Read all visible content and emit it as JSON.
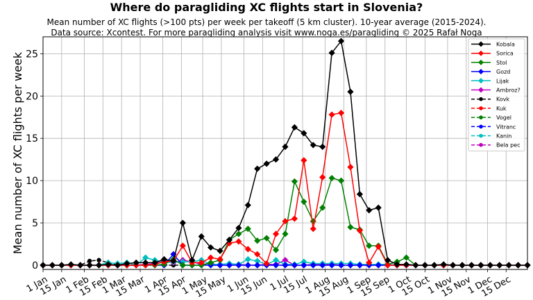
{
  "title": "Where do paragliding XC flights start in Slovenia?",
  "subtitle1": "Mean number of XC flights (>100 pts) per week per takeoff (5 km cluster). 10-year average (2015-2024).",
  "subtitle2": "Data source: Xcontest. For more paragliding analysis visit www.noga.es/paragliding © 2025 Rafał Noga",
  "chart_data": {
    "type": "line",
    "ylabel": "Mean number of XC flights per week",
    "xlim": [
      0,
      52
    ],
    "ylim": [
      -0.5,
      27
    ],
    "yticks": [
      0,
      5,
      10,
      15,
      20,
      25
    ],
    "xticks": [
      {
        "x": 0,
        "label": "1 Jan"
      },
      {
        "x": 2,
        "label": "15 Jan"
      },
      {
        "x": 4.43,
        "label": "1 Feb"
      },
      {
        "x": 6.43,
        "label": "15 Feb"
      },
      {
        "x": 8.43,
        "label": "1 Mar"
      },
      {
        "x": 10.43,
        "label": "15 Mar"
      },
      {
        "x": 12.86,
        "label": "1 Apr"
      },
      {
        "x": 14.86,
        "label": "15 Apr"
      },
      {
        "x": 17.14,
        "label": "1 May"
      },
      {
        "x": 19.14,
        "label": "15 May"
      },
      {
        "x": 21.57,
        "label": "1 Jun"
      },
      {
        "x": 23.57,
        "label": "15 Jun"
      },
      {
        "x": 25.86,
        "label": "1 Jul"
      },
      {
        "x": 27.86,
        "label": "15 Jul"
      },
      {
        "x": 30.29,
        "label": "1 Aug"
      },
      {
        "x": 32.29,
        "label": "15 Aug"
      },
      {
        "x": 34.71,
        "label": "1 Sep"
      },
      {
        "x": 36.71,
        "label": "15 Sep"
      },
      {
        "x": 39,
        "label": "1 Oct"
      },
      {
        "x": 41,
        "label": "15 Oct"
      },
      {
        "x": 43.43,
        "label": "1 Nov"
      },
      {
        "x": 45.43,
        "label": "15 Nov"
      },
      {
        "x": 47.71,
        "label": "1 Dec"
      },
      {
        "x": 49.71,
        "label": "15 Dec"
      }
    ],
    "legend_position": "upper right",
    "series": [
      {
        "name": "Kobala",
        "color": "#000000",
        "style": "solid",
        "marker": "diamond",
        "values": [
          0,
          0,
          0,
          0.1,
          0,
          0,
          0,
          0.1,
          0,
          0.2,
          0.3,
          0.3,
          0.3,
          0.7,
          0.5,
          5,
          0.6,
          3.4,
          2.1,
          1.7,
          3,
          4.4,
          7.1,
          11.4,
          12,
          12.5,
          14,
          16.3,
          15.6,
          14.2,
          14,
          25.1,
          26.5,
          20.5,
          8.4,
          6.5,
          6.8,
          0.6,
          0.1,
          0.1,
          0,
          0,
          0,
          0.1,
          0,
          0,
          0,
          0,
          0,
          0,
          0,
          0,
          0
        ]
      },
      {
        "name": "Sorica",
        "color": "#ff0000",
        "style": "solid",
        "marker": "diamond",
        "values": [
          0,
          0,
          0,
          0,
          0,
          0,
          0,
          0,
          0,
          0,
          0,
          0,
          0.1,
          0.4,
          0.5,
          2.3,
          0.3,
          0.3,
          0.9,
          0.7,
          2.6,
          2.8,
          1.9,
          1.3,
          0.2,
          3.7,
          5.2,
          5.5,
          12.4,
          4.3,
          10.4,
          17.8,
          18,
          11.6,
          4.1,
          0.3,
          2.2,
          0,
          0,
          0,
          0,
          0,
          0,
          0,
          0,
          0,
          0,
          0,
          0,
          0,
          0,
          0,
          0
        ]
      },
      {
        "name": "Stol",
        "color": "#008000",
        "style": "solid",
        "marker": "diamond",
        "values": [
          0,
          0,
          0,
          0,
          0,
          0,
          0,
          0,
          0,
          0,
          0,
          0,
          0,
          0.1,
          0.7,
          0,
          0,
          0,
          0.3,
          0.6,
          3,
          3.7,
          4.3,
          2.9,
          3.2,
          1.8,
          3.7,
          9.9,
          7.5,
          5.2,
          6.8,
          10.3,
          10,
          4.5,
          4.2,
          2.3,
          2.3,
          0.1,
          0.4,
          0.9,
          0,
          0,
          0,
          0,
          0,
          0,
          0,
          0,
          0,
          0,
          0,
          0,
          0
        ]
      },
      {
        "name": "Gozd",
        "color": "#0000ff",
        "style": "solid",
        "marker": "diamond",
        "values": [
          0,
          0,
          0,
          0,
          0,
          0,
          0,
          0,
          0,
          0,
          0,
          0,
          0,
          0,
          1.3,
          0,
          0,
          0,
          0,
          0,
          0,
          0,
          0,
          0,
          0,
          0,
          0,
          0,
          0,
          0,
          0,
          0,
          0,
          0,
          0,
          0,
          0,
          0,
          0,
          0,
          0,
          0,
          0,
          0,
          0,
          0,
          0,
          0,
          0,
          0,
          0,
          0,
          0
        ]
      },
      {
        "name": "Lijak",
        "color": "#00bfbf",
        "style": "solid",
        "marker": "diamond",
        "values": [
          0,
          0,
          0,
          0,
          0,
          0,
          0,
          0.3,
          0.2,
          0.3,
          0,
          0.9,
          0.6,
          0.3,
          0.4,
          0.4,
          0.4,
          0.6,
          0.1,
          0.1,
          0.2,
          0.1,
          0.7,
          0.5,
          0.1,
          0.6,
          0.1,
          0.1,
          0.4,
          0.2,
          0.2,
          0.2,
          0.2,
          0.2,
          0.1,
          0.1,
          0.1,
          0.1,
          0,
          0,
          0,
          0,
          0,
          0,
          0,
          0,
          0,
          0,
          0,
          0,
          0,
          0,
          0
        ]
      },
      {
        "name": "Ambroz?",
        "color": "#bf00bf",
        "style": "solid",
        "marker": "diamond",
        "values": [
          0,
          0,
          0,
          0,
          0,
          0,
          0,
          0,
          0,
          0,
          0,
          0.1,
          0.2,
          0.6,
          0.3,
          0.6,
          0.4,
          0.1,
          0.2,
          0,
          0,
          0.1,
          0,
          0,
          0.1,
          0.1,
          0.6,
          0,
          0,
          0.1,
          0.1,
          0.1,
          0,
          0,
          0,
          0,
          0,
          0,
          0,
          0,
          0,
          0,
          0,
          0,
          0,
          0,
          0,
          0,
          0,
          0,
          0,
          0,
          0
        ]
      },
      {
        "name": "Kovk",
        "color": "#000000",
        "style": "dashed",
        "marker": "circle",
        "values": [
          0,
          0,
          0,
          0,
          0,
          0.5,
          0.6,
          0.3,
          0,
          0,
          0,
          0,
          0,
          0,
          0,
          0,
          0,
          0,
          0,
          0,
          0,
          0,
          0,
          0,
          0,
          0,
          0,
          0,
          0,
          0,
          0,
          0,
          0,
          0,
          0,
          0,
          0,
          0,
          0,
          0,
          0,
          0,
          0,
          0,
          0,
          0,
          0,
          0,
          0,
          0,
          0,
          0,
          0
        ]
      },
      {
        "name": "Kuk",
        "color": "#ff0000",
        "style": "dashed",
        "marker": "circle",
        "values": []
      },
      {
        "name": "Vogel",
        "color": "#008000",
        "style": "dashed",
        "marker": "circle",
        "values": []
      },
      {
        "name": "Vitranc",
        "color": "#0000ff",
        "style": "dashed",
        "marker": "circle",
        "values": []
      },
      {
        "name": "Kanin",
        "color": "#00bfbf",
        "style": "dashed",
        "marker": "circle",
        "values": []
      },
      {
        "name": "Bela pec",
        "color": "#bf00bf",
        "style": "dashed",
        "marker": "circle",
        "values": []
      }
    ]
  }
}
